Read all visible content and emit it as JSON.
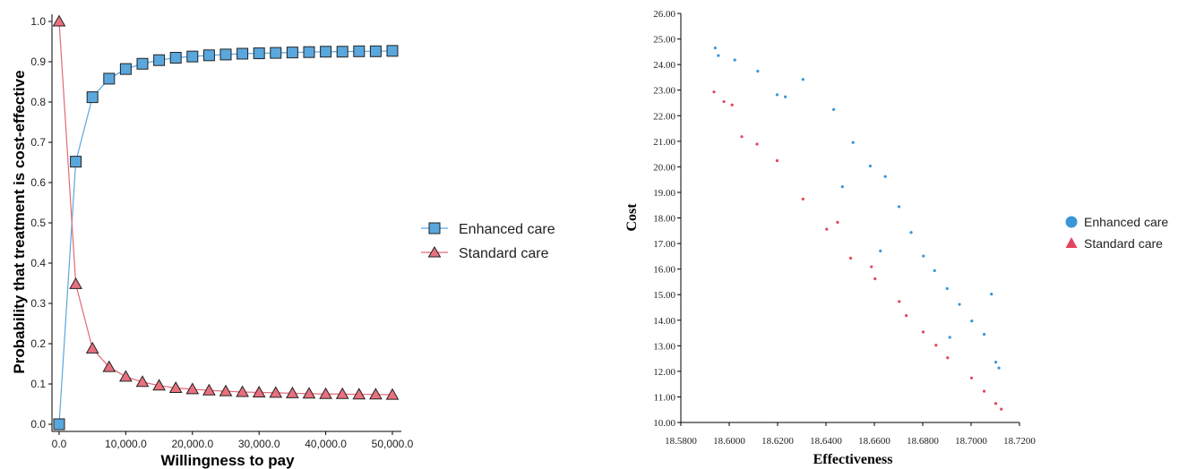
{
  "colors": {
    "enhanced_fill": "#5aa7dd",
    "enhanced_line": "#5aa7dd",
    "standard_fill": "#e8707f",
    "standard_line": "#e06a78",
    "marker_stroke": "#222222",
    "scatter_blue": "#3a96d6",
    "scatter_red": "#e4455e"
  },
  "chart_data": [
    {
      "type": "line",
      "title": "",
      "xlabel": "Willingness to pay",
      "ylabel": "Probability that treatment is cost-effective",
      "xlim": [
        0,
        50000
      ],
      "ylim": [
        0,
        1.0
      ],
      "x_ticks": [
        0,
        10000,
        20000,
        30000,
        40000,
        50000
      ],
      "x_tick_labels": [
        "0.0",
        "10,000.0",
        "20,000.0",
        "30,000.0",
        "40,000.0",
        "50,000.0"
      ],
      "y_ticks": [
        0,
        0.1,
        0.2,
        0.3,
        0.4,
        0.5,
        0.6,
        0.7,
        0.8,
        0.9,
        1.0
      ],
      "y_tick_labels": [
        "0.0",
        "0.1",
        "0.2",
        "0.3",
        "0.4",
        "0.5",
        "0.6",
        "0.7",
        "0.8",
        "0.9",
        "1.0"
      ],
      "legend": "right",
      "x": [
        0,
        2500,
        5000,
        7500,
        10000,
        12500,
        15000,
        17500,
        20000,
        22500,
        25000,
        27500,
        30000,
        32500,
        35000,
        37500,
        40000,
        42500,
        45000,
        47500,
        50000
      ],
      "series": [
        {
          "name": "Enhanced care",
          "marker": "square",
          "values": [
            0.0,
            0.652,
            0.812,
            0.858,
            0.882,
            0.895,
            0.904,
            0.91,
            0.913,
            0.916,
            0.918,
            0.92,
            0.921,
            0.922,
            0.923,
            0.924,
            0.925,
            0.925,
            0.926,
            0.926,
            0.927
          ]
        },
        {
          "name": "Standard care",
          "marker": "triangle",
          "values": [
            1.0,
            0.348,
            0.188,
            0.142,
            0.118,
            0.105,
            0.096,
            0.09,
            0.087,
            0.084,
            0.082,
            0.08,
            0.079,
            0.078,
            0.077,
            0.076,
            0.075,
            0.075,
            0.074,
            0.074,
            0.073
          ]
        }
      ]
    },
    {
      "type": "scatter",
      "title": "",
      "xlabel": "Effectiveness",
      "ylabel": "Cost",
      "xlim": [
        18.58,
        18.72
      ],
      "ylim": [
        10.0,
        26.0
      ],
      "x_ticks": [
        18.58,
        18.6,
        18.62,
        18.64,
        18.66,
        18.68,
        18.7,
        18.72
      ],
      "x_tick_labels": [
        "18.5800",
        "18.6000",
        "18.6200",
        "18.6400",
        "18.6600",
        "18.6800",
        "18.7000",
        "18.7200"
      ],
      "y_ticks": [
        10,
        11,
        12,
        13,
        14,
        15,
        16,
        17,
        18,
        19,
        20,
        21,
        22,
        23,
        24,
        25,
        26
      ],
      "y_tick_labels": [
        "10.00",
        "11.00",
        "12.00",
        "13.00",
        "14.00",
        "15.00",
        "16.00",
        "17.00",
        "18.00",
        "19.00",
        "20.00",
        "21.00",
        "22.00",
        "23.00",
        "24.00",
        "25.00",
        "26.00"
      ],
      "legend": "right",
      "series": [
        {
          "name": "Enhanced care",
          "marker": "circle",
          "points": [
            [
              18.5942,
              24.65
            ],
            [
              18.5955,
              24.35
            ],
            [
              18.6023,
              24.18
            ],
            [
              18.6118,
              23.74
            ],
            [
              18.6198,
              22.82
            ],
            [
              18.6232,
              22.74
            ],
            [
              18.6305,
              23.42
            ],
            [
              18.6432,
              22.24
            ],
            [
              18.6512,
              20.95
            ],
            [
              18.6583,
              20.03
            ],
            [
              18.6645,
              19.62
            ],
            [
              18.6702,
              18.44
            ],
            [
              18.6752,
              17.43
            ],
            [
              18.6803,
              16.51
            ],
            [
              18.6849,
              15.94
            ],
            [
              18.6901,
              15.24
            ],
            [
              18.6952,
              14.62
            ],
            [
              18.7003,
              13.97
            ],
            [
              18.7054,
              13.45
            ],
            [
              18.7102,
              12.36
            ],
            [
              18.7115,
              12.13
            ],
            [
              18.7084,
              15.02
            ],
            [
              18.6625,
              16.71
            ],
            [
              18.6468,
              19.22
            ],
            [
              18.6912,
              13.33
            ]
          ]
        },
        {
          "name": "Standard care",
          "marker": "triangle",
          "points": [
            [
              18.5937,
              22.93
            ],
            [
              18.5978,
              22.55
            ],
            [
              18.6012,
              22.42
            ],
            [
              18.6052,
              21.18
            ],
            [
              18.6115,
              20.89
            ],
            [
              18.6198,
              20.24
            ],
            [
              18.6305,
              18.74
            ],
            [
              18.6403,
              17.56
            ],
            [
              18.6502,
              16.43
            ],
            [
              18.6603,
              15.62
            ],
            [
              18.6703,
              14.73
            ],
            [
              18.6802,
              13.54
            ],
            [
              18.6903,
              12.53
            ],
            [
              18.7002,
              11.74
            ],
            [
              18.7054,
              11.22
            ],
            [
              18.7102,
              10.74
            ],
            [
              18.7125,
              10.52
            ],
            [
              18.6732,
              14.18
            ],
            [
              18.6588,
              16.09
            ],
            [
              18.6448,
              17.83
            ],
            [
              18.6855,
              13.02
            ]
          ]
        }
      ]
    }
  ]
}
